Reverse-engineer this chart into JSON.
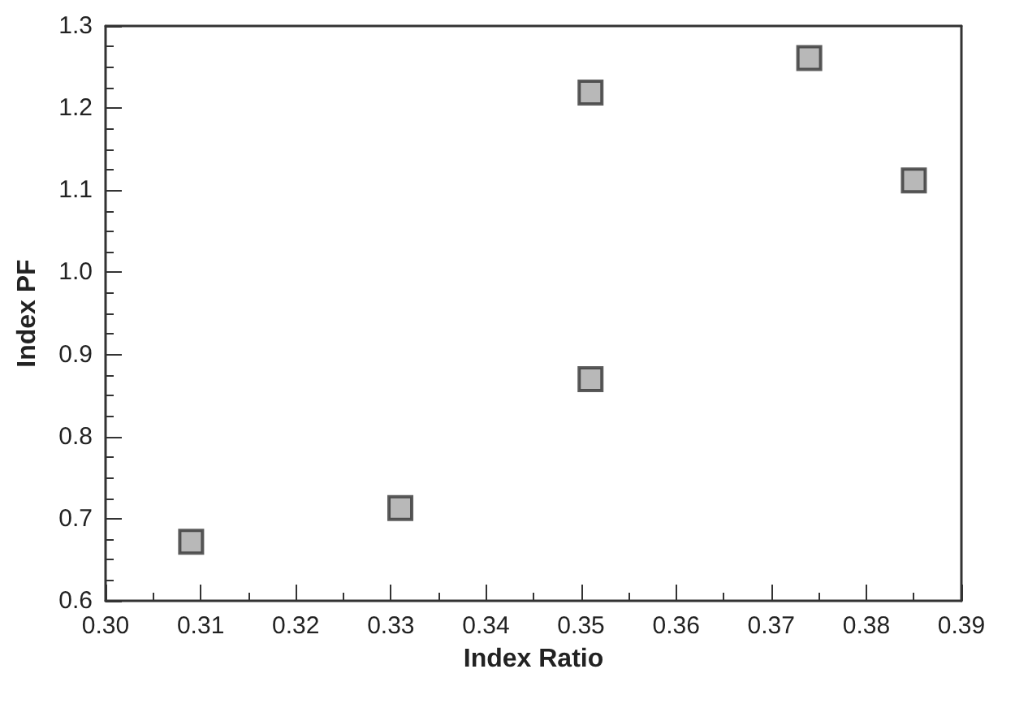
{
  "chart_data": {
    "type": "scatter",
    "xlabel": "Index Ratio",
    "ylabel": "Index PF",
    "x": [
      0.309,
      0.331,
      0.351,
      0.351,
      0.374,
      0.385
    ],
    "values": [
      0.672,
      0.713,
      1.219,
      0.87,
      1.261,
      1.112
    ],
    "color": "#a6a6a6",
    "marker": "square",
    "xlim": [
      0.3,
      0.39
    ],
    "xticks": [
      {
        "value": 0.3,
        "label": "0.30"
      },
      0.31,
      0.32,
      0.33,
      0.34,
      0.35,
      0.36,
      0.37,
      0.38,
      0.39
    ],
    "ylim": [
      0.6,
      1.3
    ],
    "yticks": [
      0.6,
      0.7,
      0.8,
      0.9,
      {
        "value": 1,
        "label": "1.0"
      },
      1.1,
      1.2,
      1.3
    ],
    "grid": false
  }
}
